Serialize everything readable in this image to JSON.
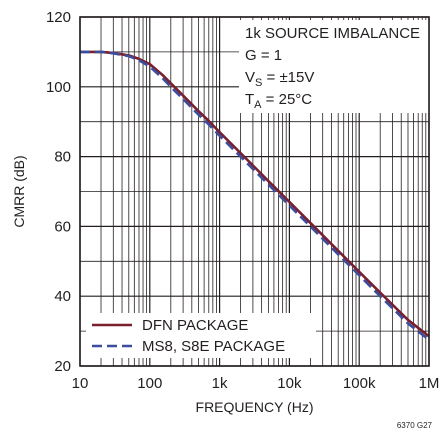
{
  "chart_data": {
    "type": "line",
    "xscale": "log",
    "xlim": [
      10,
      1000000
    ],
    "ylim": [
      20,
      120
    ],
    "xlabel": "FREQUENCY (Hz)",
    "ylabel": "CMRR (dB)",
    "xticks": [
      10,
      100,
      1000,
      10000,
      100000,
      1000000
    ],
    "xtick_labels": [
      "10",
      "100",
      "1k",
      "10k",
      "100k",
      "1M"
    ],
    "yticks": [
      20,
      40,
      60,
      80,
      100,
      120
    ],
    "ytick_labels": [
      "20",
      "40",
      "60",
      "80",
      "100",
      "120"
    ],
    "grid": true,
    "annotation": {
      "line1": "1k SOURCE IMBALANCE",
      "line2": "G = 1",
      "line3_main": "V",
      "line3_sub": "S",
      "line3_rest": " = ±15V",
      "line4_main": "T",
      "line4_sub": "A",
      "line4_rest": " = 25°C"
    },
    "series": [
      {
        "name": "DFN PACKAGE",
        "color": "#7a1f2b",
        "style": "solid",
        "x": [
          10,
          20,
          30,
          50,
          70,
          100,
          150,
          200,
          300,
          500,
          700,
          1000,
          2000,
          5000,
          10000,
          20000,
          50000,
          100000,
          200000,
          500000,
          1000000
        ],
        "y": [
          110,
          110,
          109.7,
          109,
          108,
          106.5,
          103.5,
          101,
          97.5,
          93,
          90.2,
          87,
          81,
          73,
          67,
          61,
          53,
          47,
          41,
          33.2,
          28.5
        ]
      },
      {
        "name": "MS8, S8E PACKAGE",
        "color": "#3a4ea0",
        "style": "dashed",
        "x": [
          10,
          20,
          30,
          50,
          70,
          100,
          150,
          200,
          300,
          500,
          700,
          1000,
          2000,
          5000,
          10000,
          20000,
          50000,
          100000,
          200000,
          500000,
          1000000
        ],
        "y": [
          110,
          110,
          109.6,
          108.8,
          107.6,
          105.8,
          102.6,
          100,
          96.5,
          92,
          89.2,
          86,
          80,
          72,
          66,
          60,
          52,
          46,
          40,
          32.2,
          27.5
        ]
      }
    ],
    "figure_id": "6370 G27"
  }
}
